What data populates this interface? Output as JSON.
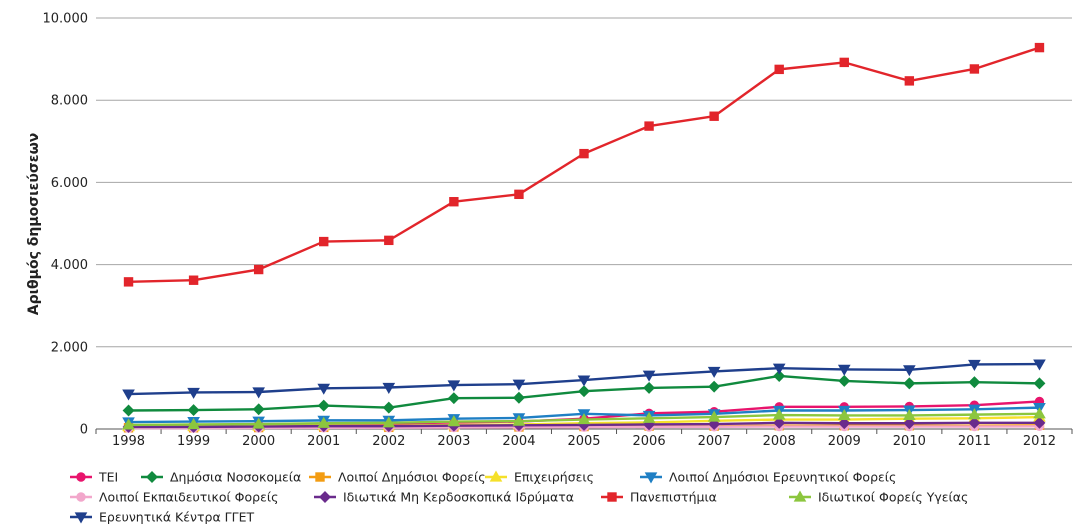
{
  "chart_data": {
    "type": "line",
    "ylabel": "Αριθμός δημοσιεύσεων",
    "xlabel": "",
    "ylim": [
      0,
      10000
    ],
    "yticks": [
      0,
      2000,
      4000,
      6000,
      8000,
      10000
    ],
    "ytick_labels": [
      "0",
      "2.000",
      "4.000",
      "6.000",
      "8.000",
      "10.000"
    ],
    "grid": true,
    "legend_position": "bottom-left",
    "x": [
      "1998",
      "1999",
      "2000",
      "2001",
      "2002",
      "2003",
      "2004",
      "2005",
      "2006",
      "2007",
      "2008",
      "2009",
      "2010",
      "2011",
      "2012"
    ],
    "series": [
      {
        "name": "ΤΕΙ",
        "color": "#e8146c",
        "marker": "circle",
        "values": [
          80,
          90,
          100,
          120,
          130,
          160,
          180,
          250,
          380,
          420,
          540,
          540,
          550,
          580,
          670
        ]
      },
      {
        "name": "Δημόσια Νοσοκομεία",
        "color": "#108a3e",
        "marker": "diamond",
        "values": [
          450,
          460,
          480,
          570,
          520,
          750,
          760,
          920,
          1000,
          1030,
          1290,
          1170,
          1110,
          1140,
          1110
        ]
      },
      {
        "name": "Λοιποί Δημόσιοι Φορείς",
        "color": "#f39c12",
        "marker": "square",
        "values": [
          30,
          30,
          35,
          40,
          40,
          50,
          50,
          60,
          70,
          70,
          80,
          80,
          80,
          80,
          90
        ]
      },
      {
        "name": "Επιχειρήσεις",
        "color": "#f5e02a",
        "marker": "triangle-up",
        "values": [
          60,
          60,
          70,
          80,
          80,
          100,
          110,
          140,
          160,
          200,
          230,
          230,
          250,
          260,
          290
        ]
      },
      {
        "name": "Λοιποί Δημόσιοι Ερευνητικοί Φορείς",
        "color": "#1f7fc4",
        "marker": "triangle-down",
        "values": [
          170,
          180,
          190,
          210,
          210,
          250,
          270,
          370,
          330,
          370,
          450,
          450,
          460,
          480,
          520
        ]
      },
      {
        "name": "Λοιποί Εκπαιδευτικοί Φορείς",
        "color": "#f2a7cb",
        "marker": "circle",
        "values": [
          20,
          20,
          25,
          30,
          30,
          35,
          40,
          45,
          50,
          55,
          60,
          60,
          60,
          60,
          65
        ]
      },
      {
        "name": "Ιδιωτικά Μη Κερδοσκοπικά Ιδρύματα",
        "color": "#6a2b8c",
        "marker": "diamond",
        "values": [
          50,
          50,
          60,
          70,
          70,
          80,
          90,
          100,
          110,
          120,
          150,
          140,
          140,
          150,
          150
        ]
      },
      {
        "name": "Πανεπιστήμια",
        "color": "#e2252b",
        "marker": "square",
        "values": [
          3580,
          3620,
          3880,
          4560,
          4590,
          5530,
          5710,
          6700,
          7370,
          7610,
          8750,
          8920,
          8470,
          8760,
          9280
        ]
      },
      {
        "name": "Ιδιωτικοί Φορείς Υγείας",
        "color": "#8cc63e",
        "marker": "triangle-up",
        "values": [
          100,
          110,
          120,
          140,
          150,
          180,
          190,
          230,
          260,
          290,
          340,
          330,
          330,
          350,
          370
        ]
      },
      {
        "name": "Ερευνητικά Κέντρα ΓΓΕΤ",
        "color": "#1f3f8c",
        "marker": "triangle-down",
        "values": [
          850,
          890,
          900,
          990,
          1010,
          1070,
          1090,
          1190,
          1310,
          1400,
          1480,
          1450,
          1440,
          1570,
          1580
        ]
      }
    ]
  }
}
